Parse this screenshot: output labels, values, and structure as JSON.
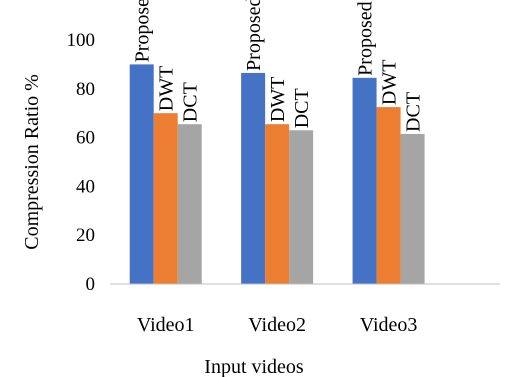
{
  "chart_data": {
    "type": "bar",
    "title": "",
    "xlabel": "Input videos",
    "ylabel": "Compression Ratio %",
    "categories": [
      "Video1",
      "Video2",
      "Video3"
    ],
    "ylim": [
      0,
      100
    ],
    "yticks": [
      "0",
      "20",
      "40",
      "60",
      "80",
      "100"
    ],
    "grid": false,
    "legend": "none",
    "series": [
      {
        "name": "Proposed",
        "color": "#4472C4",
        "values": [
          90,
          86.5,
          84.5
        ]
      },
      {
        "name": "DWT",
        "color": "#ED7D31",
        "values": [
          70,
          65.5,
          72.5
        ]
      },
      {
        "name": "DCT",
        "color": "#A5A5A5",
        "values": [
          65.5,
          63,
          61.5
        ]
      }
    ]
  }
}
